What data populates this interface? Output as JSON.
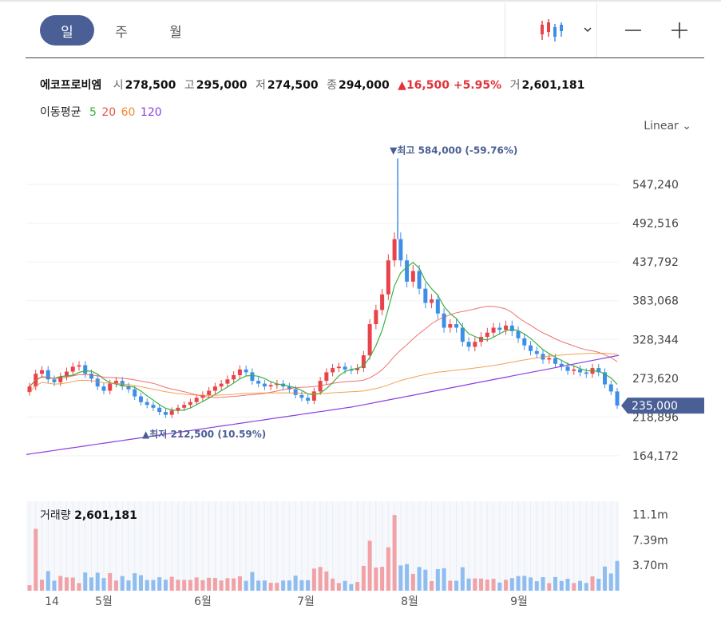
{
  "tabs": [
    "일",
    "주",
    "월"
  ],
  "active_tab": 0,
  "toolbar": {
    "chart_type_icon": "candlestick-icon",
    "dropdown_icon": "chevron-down-icon",
    "zoom_out_icon": "minus-icon",
    "zoom_in_icon": "plus-icon"
  },
  "stock": {
    "name": "에코프로비엠",
    "open_label": "시",
    "open": "278,500",
    "high_label": "고",
    "high": "295,000",
    "low_label": "저",
    "low": "274,500",
    "close_label": "종",
    "close": "294,000",
    "change": "▲16,500 +5.95%",
    "volume_label": "거",
    "volume": "2,601,181"
  },
  "moving_average": {
    "label": "이동평균",
    "periods": [
      {
        "value": "5",
        "color": "#3cb043"
      },
      {
        "value": "20",
        "color": "#e8504b"
      },
      {
        "value": "60",
        "color": "#f08a2c"
      },
      {
        "value": "120",
        "color": "#8b3fe0"
      }
    ]
  },
  "scale_mode": "Linear",
  "colors": {
    "up": "#e8434a",
    "down": "#3d8ee8",
    "accent": "#4a5f95"
  },
  "chart_data": {
    "type": "candlestick",
    "y_ticks": [
      "547,240",
      "492,516",
      "437,792",
      "383,068",
      "328,344",
      "273,620",
      "218,896",
      "164,172"
    ],
    "y_tick_values": [
      547240,
      492516,
      437792,
      383068,
      328344,
      273620,
      218896,
      164172
    ],
    "x_ticks": [
      "14",
      "5월",
      "6월",
      "7월",
      "8월",
      "9월"
    ],
    "current_price_label": "235,000",
    "current_price": 235000,
    "high_annotation": "▼최고 584,000 (-59.76%)",
    "high_value": 584000,
    "low_annotation": "▲최저 212,500 (10.59%)",
    "low_value": 212500,
    "close_series": [
      262000,
      280000,
      285000,
      272000,
      268000,
      276000,
      283000,
      290000,
      292000,
      280000,
      273000,
      262000,
      256000,
      266000,
      270000,
      262000,
      258000,
      248000,
      240000,
      236000,
      232000,
      226000,
      222000,
      228000,
      232000,
      236000,
      240000,
      246000,
      250000,
      256000,
      262000,
      266000,
      272000,
      278000,
      286000,
      282000,
      270000,
      266000,
      262000,
      264000,
      266000,
      262000,
      258000,
      250000,
      246000,
      242000,
      255000,
      270000,
      282000,
      288000,
      290000,
      286000,
      285000,
      288000,
      306000,
      350000,
      370000,
      392000,
      440000,
      470000,
      440000,
      410000,
      425000,
      400000,
      380000,
      385000,
      365000,
      345000,
      350000,
      345000,
      325000,
      318000,
      325000,
      332000,
      338000,
      345000,
      342000,
      348000,
      340000,
      330000,
      320000,
      312000,
      308000,
      300000,
      302000,
      294000,
      290000,
      284000,
      286000,
      282000,
      280000,
      288000,
      282000,
      265000,
      255000,
      235000
    ],
    "ma_lines": {
      "ma5": "short-term green line",
      "ma20": "red line",
      "ma60": "orange line",
      "ma120": "purple line"
    },
    "volume": {
      "title_label": "거래량",
      "title_value": "2,601,181",
      "y_ticks": [
        "11.1m",
        "7.39m",
        "3.70m"
      ],
      "y_tick_values": [
        11100000,
        7390000,
        3700000
      ]
    }
  }
}
